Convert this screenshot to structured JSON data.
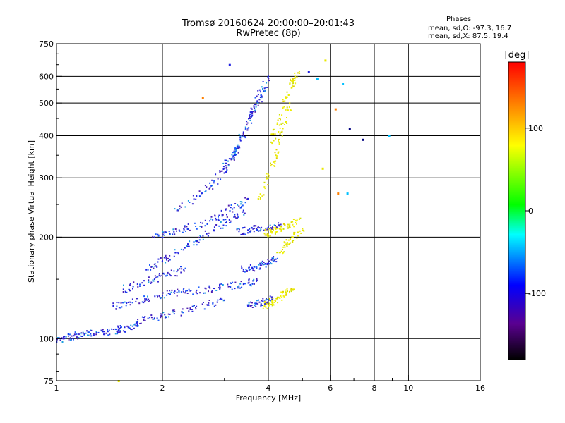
{
  "header": {
    "title": "Tromsø 20160624 20:00:00–20:01:43",
    "subtitle": "RwPretec (8p)"
  },
  "phase_box": {
    "heading": "Phases",
    "line1": "mean, sd,O: -97.3, 16.7",
    "line2": "mean, sd,X:  87.5, 19.4"
  },
  "chart_data": {
    "type": "scatter",
    "xlabel": "Frequency [MHz]",
    "ylabel": "Stationary phase Virtual Height [km]",
    "x_scale": "log",
    "y_scale": "log",
    "xlim": [
      1,
      16
    ],
    "ylim": [
      75,
      750
    ],
    "x_ticks": [
      1,
      2,
      4,
      6,
      8,
      10,
      16
    ],
    "y_ticks": [
      75,
      100,
      200,
      300,
      400,
      500,
      600,
      750
    ],
    "x_grid": [
      1,
      2,
      4,
      6,
      8,
      10,
      16
    ],
    "y_grid": [
      100,
      200,
      300,
      400,
      500,
      600
    ],
    "x_minor_ticks": [
      3,
      5,
      7,
      9
    ],
    "grid": true,
    "colorbar": {
      "label": "[deg]",
      "range": [
        -180,
        180
      ],
      "ticks": [
        -100,
        0,
        100
      ],
      "colors": [
        "#000000",
        "#6a00a8",
        "#0000ff",
        "#00ffff",
        "#00ff00",
        "#ffff00",
        "#ff8000",
        "#ff0000"
      ]
    },
    "series": [
      {
        "mode": "O",
        "color_deg": -100,
        "color": "#2020e0",
        "traces": [
          {
            "x": [
              1.0,
              1.05,
              1.12,
              1.2,
              1.3,
              1.4,
              1.5,
              1.6,
              1.7
            ],
            "y": [
              98,
              100,
              102,
              103,
              104,
              105,
              106,
              108,
              110
            ]
          },
          {
            "x": [
              1.7,
              1.9,
              2.1,
              2.4,
              2.7,
              3.0
            ],
            "y": [
              112,
              115,
              118,
              122,
              126,
              130
            ]
          },
          {
            "x": [
              1.45,
              1.6,
              1.8,
              2.0,
              2.2,
              2.5,
              2.8,
              3.1,
              3.4,
              3.7
            ],
            "y": [
              125,
              128,
              131,
              134,
              137,
              139,
              141,
              143,
              145,
              148
            ]
          },
          {
            "x": [
              1.55,
              1.7,
              1.9,
              2.1,
              2.3
            ],
            "y": [
              140,
              145,
              150,
              155,
              160
            ]
          },
          {
            "x": [
              1.8,
              2.0,
              2.2,
              2.5,
              2.8,
              3.1,
              3.4
            ],
            "y": [
              160,
              170,
              180,
              195,
              210,
              225,
              240
            ]
          },
          {
            "x": [
              1.9,
              2.1,
              2.3,
              2.6,
              2.9,
              3.2,
              3.5
            ],
            "y": [
              200,
              205,
              212,
              220,
              232,
              245,
              260
            ]
          },
          {
            "x": [
              2.2,
              2.5,
              2.8,
              3.0,
              3.2,
              3.4,
              3.6,
              3.8
            ],
            "y": [
              240,
              265,
              290,
              320,
              360,
              410,
              470,
              540
            ]
          },
          {
            "x": [
              3.0,
              3.2,
              3.4,
              3.6,
              3.8,
              4.0
            ],
            "y": [
              310,
              350,
              400,
              460,
              520,
              600
            ]
          },
          {
            "x": [
              3.4,
              3.6,
              3.8,
              4.0,
              4.2
            ],
            "y": [
              160,
              162,
              165,
              168,
              172
            ]
          },
          {
            "x": [
              3.3,
              3.5,
              3.7,
              4.0,
              4.3
            ],
            "y": [
              208,
              210,
              212,
              214,
              216
            ]
          },
          {
            "x": [
              3.5,
              3.7,
              3.9,
              4.1
            ],
            "y": [
              125,
              127,
              129,
              131
            ]
          }
        ]
      },
      {
        "mode": "X",
        "color_deg": 100,
        "color": "#e8e800",
        "traces": [
          {
            "x": [
              3.9,
              4.1,
              4.3,
              4.5,
              4.7
            ],
            "y": [
              125,
              128,
              132,
              136,
              140
            ]
          },
          {
            "x": [
              3.9,
              4.1,
              4.3,
              4.6,
              4.9
            ],
            "y": [
              205,
              208,
              212,
              218,
              226
            ]
          },
          {
            "x": [
              3.8,
              4.0,
              4.2,
              4.4,
              4.6
            ],
            "y": [
              260,
              300,
              350,
              420,
              500
            ]
          },
          {
            "x": [
              4.1,
              4.3,
              4.5,
              4.7,
              4.9
            ],
            "y": [
              380,
              450,
              520,
              580,
              620
            ]
          },
          {
            "x": [
              4.3,
              4.5,
              4.7,
              5.0
            ],
            "y": [
              180,
              190,
              200,
              212
            ]
          }
        ]
      }
    ],
    "outliers": [
      {
        "x": 2.6,
        "y": 520,
        "deg": 150
      },
      {
        "x": 3.1,
        "y": 650,
        "deg": -100
      },
      {
        "x": 5.2,
        "y": 620,
        "deg": -100
      },
      {
        "x": 5.5,
        "y": 590,
        "deg": -60
      },
      {
        "x": 5.8,
        "y": 670,
        "deg": 90
      },
      {
        "x": 6.5,
        "y": 570,
        "deg": -40
      },
      {
        "x": 6.2,
        "y": 480,
        "deg": 150
      },
      {
        "x": 6.8,
        "y": 420,
        "deg": -150
      },
      {
        "x": 7.4,
        "y": 390,
        "deg": -150
      },
      {
        "x": 8.8,
        "y": 400,
        "deg": -30
      },
      {
        "x": 6.3,
        "y": 270,
        "deg": 150
      },
      {
        "x": 6.7,
        "y": 270,
        "deg": -30
      },
      {
        "x": 5.7,
        "y": 320,
        "deg": 80
      },
      {
        "x": 1.5,
        "y": 75,
        "deg": 100
      }
    ]
  }
}
